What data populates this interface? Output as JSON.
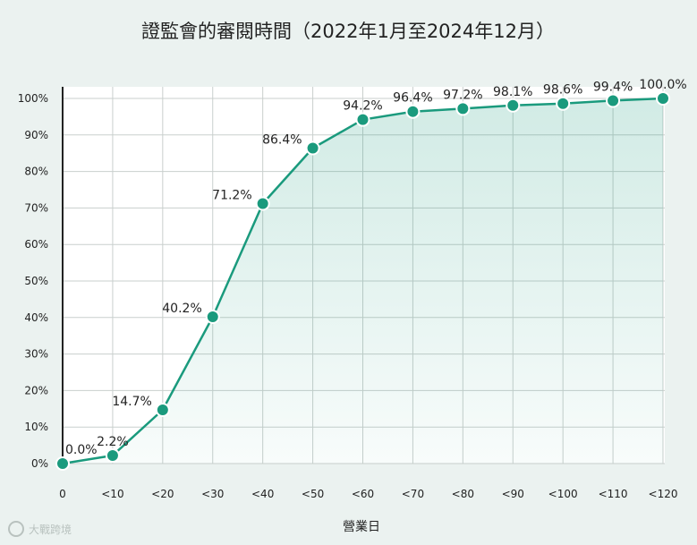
{
  "chart_data": {
    "type": "area",
    "title": "證監會的審閱時間（2022年1月至2024年12月）",
    "xlabel": "營業日",
    "ylabel": "",
    "categories": [
      "0",
      "<10",
      "<20",
      "<30",
      "<40",
      "<50",
      "<60",
      "<70",
      "<80",
      "<90",
      "<100",
      "<110",
      "<120"
    ],
    "values": [
      0.0,
      2.2,
      14.7,
      40.2,
      71.2,
      86.4,
      94.2,
      96.4,
      97.2,
      98.1,
      98.6,
      99.4,
      100.0
    ],
    "labels": [
      "0.0%",
      "2.2%",
      "14.7%",
      "40.2%",
      "71.2%",
      "86.4%",
      "94.2%",
      "96.4%",
      "97.2%",
      "98.1%",
      "98.6%",
      "99.4%",
      "100.0%"
    ],
    "ylim": [
      0,
      100
    ],
    "yticks": [
      "0%",
      "10%",
      "20%",
      "30%",
      "40%",
      "50%",
      "60%",
      "70%",
      "80%",
      "90%",
      "100%"
    ],
    "grid": true,
    "colors": {
      "line": "#1a9a7d",
      "fill": "#1a9a7d",
      "marker_stroke": "#ffffff"
    }
  },
  "watermark": {
    "text": "大戰跨境"
  }
}
